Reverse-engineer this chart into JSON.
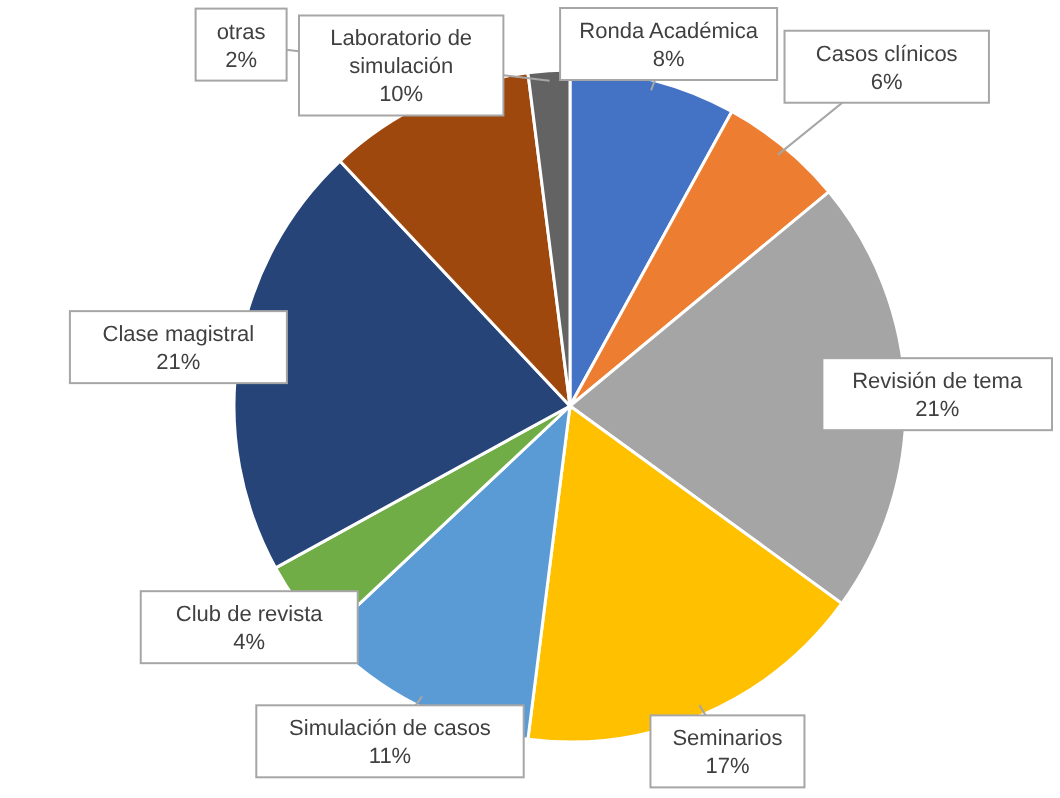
{
  "chart_data": {
    "type": "pie",
    "categories": [
      "Ronda Académica",
      "Casos clínicos",
      "Revisión de tema",
      "Seminarios",
      "Simulación de casos",
      "Club de revista",
      "Clase magistral",
      "Laboratorio de simulación",
      "otras"
    ],
    "values": [
      8,
      6,
      21,
      17,
      11,
      4,
      21,
      10,
      2
    ],
    "value_labels": [
      "8%",
      "6%",
      "21%",
      "17%",
      "11%",
      "4%",
      "21%",
      "10%",
      "2%"
    ],
    "colors": [
      "#4472c4",
      "#ed7d31",
      "#a5a5a5",
      "#ffc000",
      "#5b9bd5",
      "#70ad47",
      "#264478",
      "#9e480e",
      "#636363"
    ],
    "legend": false
  }
}
